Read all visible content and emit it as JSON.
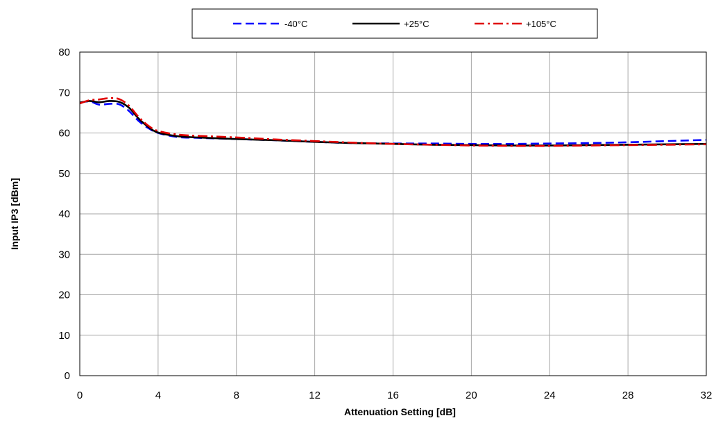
{
  "chart_data": {
    "type": "line",
    "title": "",
    "xlabel": "Attenuation Setting [dB]",
    "ylabel": "Input IP3 [dBm]",
    "xlim": [
      0,
      32
    ],
    "ylim": [
      0,
      80
    ],
    "xticks": [
      "0",
      "4",
      "8",
      "12",
      "16",
      "20",
      "24",
      "28",
      "32"
    ],
    "yticks": [
      "0",
      "10",
      "20",
      "30",
      "40",
      "50",
      "60",
      "70",
      "80"
    ],
    "grid": true,
    "legend_position": "top-center",
    "series": [
      {
        "name": "-40°C",
        "color": "#0000ff",
        "dash": "dashed",
        "x": [
          0,
          0.5,
          1,
          1.5,
          2,
          2.5,
          3,
          3.5,
          4,
          5,
          6,
          8,
          10,
          12,
          14,
          16,
          18,
          20,
          22,
          24,
          26,
          28,
          30,
          32
        ],
        "y": [
          67.5,
          67.8,
          67.0,
          67.2,
          67.1,
          65.5,
          63.0,
          61.2,
          60.0,
          59.0,
          58.8,
          58.5,
          58.2,
          57.8,
          57.5,
          57.4,
          57.4,
          57.3,
          57.3,
          57.4,
          57.5,
          57.7,
          58.0,
          58.3
        ]
      },
      {
        "name": "+25°C",
        "color": "#000000",
        "dash": "solid",
        "x": [
          0,
          0.5,
          1,
          1.5,
          2,
          2.5,
          3,
          3.5,
          4,
          5,
          6,
          8,
          10,
          12,
          14,
          16,
          18,
          20,
          22,
          24,
          26,
          28,
          30,
          32
        ],
        "y": [
          67.5,
          67.9,
          67.6,
          67.9,
          67.7,
          66.3,
          63.6,
          61.5,
          60.1,
          59.2,
          58.9,
          58.5,
          58.2,
          57.8,
          57.5,
          57.3,
          57.1,
          57.0,
          56.9,
          56.9,
          57.0,
          57.1,
          57.2,
          57.3
        ]
      },
      {
        "name": "+105°C",
        "color": "#e00000",
        "dash": "dashdot",
        "x": [
          0,
          0.5,
          1,
          1.5,
          2,
          2.5,
          3,
          3.5,
          4,
          5,
          6,
          8,
          10,
          12,
          14,
          16,
          18,
          20,
          22,
          24,
          26,
          28,
          30,
          32
        ],
        "y": [
          67.3,
          68.1,
          68.3,
          68.6,
          68.4,
          66.8,
          64.0,
          61.8,
          60.5,
          59.6,
          59.3,
          58.9,
          58.4,
          58.0,
          57.6,
          57.3,
          57.1,
          56.9,
          56.8,
          56.8,
          56.9,
          57.0,
          57.1,
          57.2
        ]
      }
    ]
  }
}
